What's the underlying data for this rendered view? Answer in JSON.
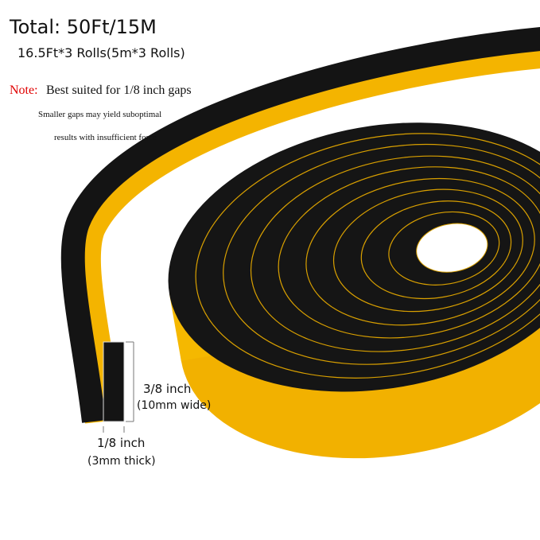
{
  "header": {
    "title": "Total: 50Ft/15M",
    "subtitle": "16.5Ft*3 Rolls(5m*3 Rolls)"
  },
  "note": {
    "label": "Note:",
    "text": "Best suited for 1/8 inch gaps",
    "details": [
      "Smaller gaps may yield suboptimal",
      "results with insufficient force"
    ]
  },
  "dimensions": {
    "width": "3/8 inch",
    "width_metric": "(10mm wide)",
    "thickness": "1/8 inch",
    "thickness_metric": "(3mm thick)"
  }
}
